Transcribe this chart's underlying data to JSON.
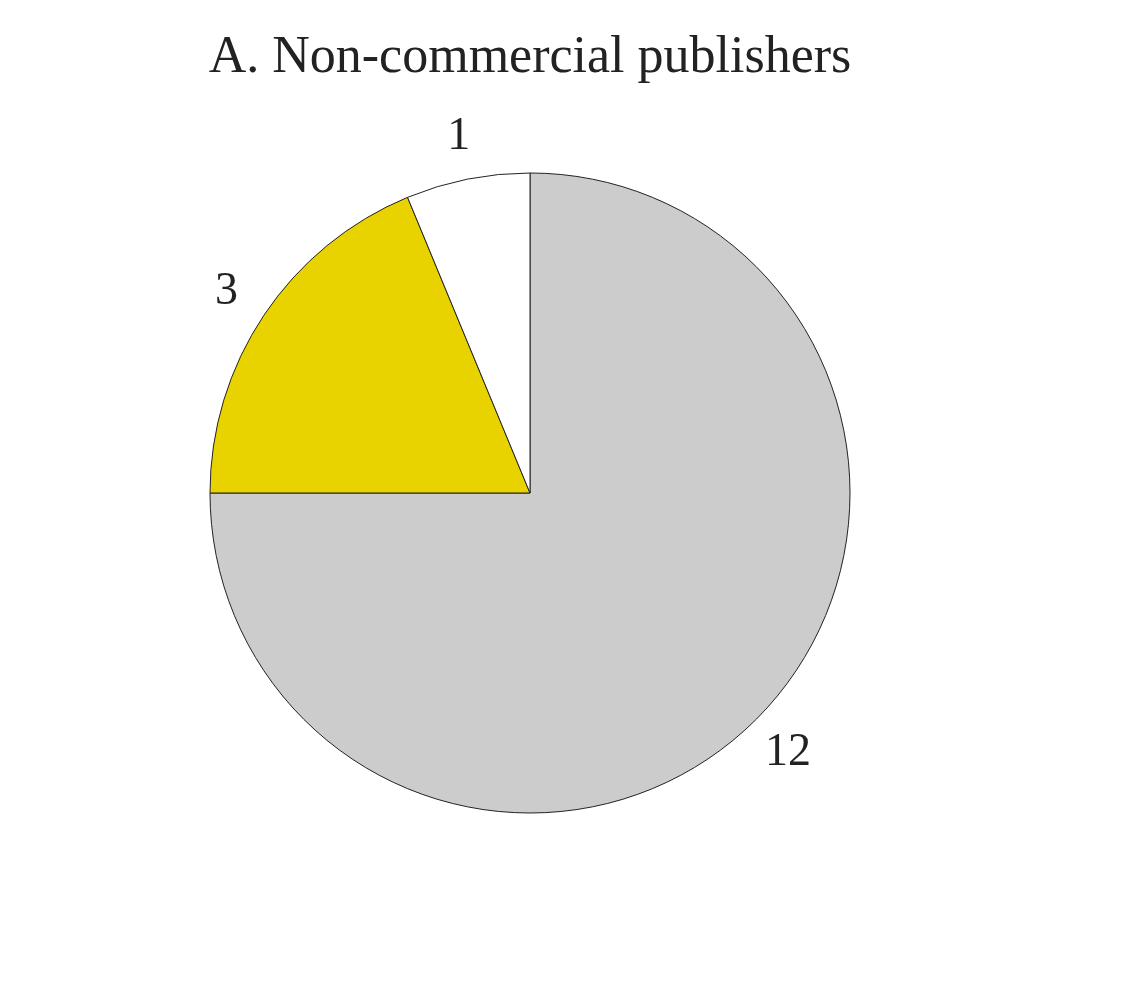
{
  "chart_data": {
    "type": "pie",
    "title": "A. Non-commercial  publishers",
    "categories": [
      null,
      null,
      null
    ],
    "values": [
      12,
      3,
      1
    ],
    "colors": [
      "#cccccc",
      "#e8d200",
      "#ffffff"
    ],
    "data_labels": true
  }
}
